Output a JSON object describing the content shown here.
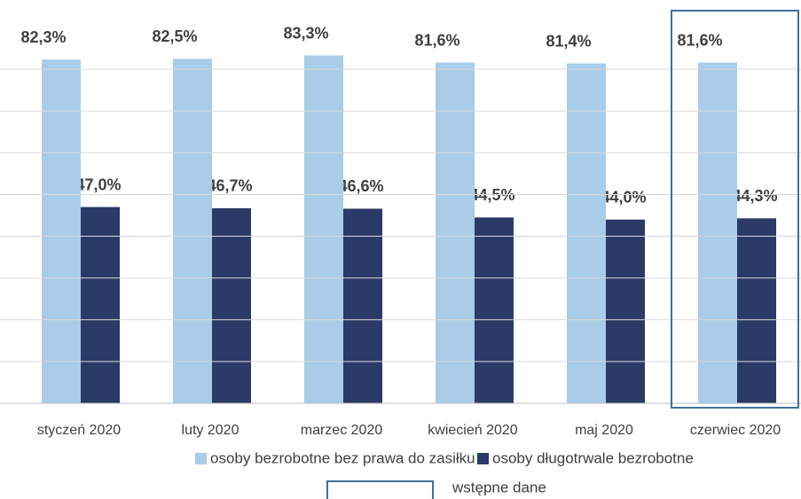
{
  "chart_data": {
    "type": "bar",
    "categories": [
      "styczeń 2020",
      "luty 2020",
      "marzec 2020",
      "kwiecień 2020",
      "maj 2020",
      "czerwiec 2020"
    ],
    "series": [
      {
        "name": "osoby bezrobotne bez prawa do zasiłku",
        "color": "#a9cce9",
        "values": [
          82.3,
          82.5,
          83.3,
          81.6,
          81.4,
          81.6
        ],
        "value_labels": [
          "82,3%",
          "82,5%",
          "83,3%",
          "81,6%",
          "81,4%",
          "81,6%"
        ]
      },
      {
        "name": "osoby długotrwale bezrobotne",
        "color": "#2b3a67",
        "values": [
          47.0,
          46.7,
          46.6,
          44.5,
          44.0,
          44.3
        ],
        "value_labels": [
          "47,0%",
          "46,7%",
          "46,6%",
          "44,5%",
          "44,0%",
          "44,3%"
        ]
      }
    ],
    "ylim": [
      0,
      90
    ],
    "yticks": [
      0,
      10,
      20,
      30,
      40,
      50,
      60,
      70,
      80
    ],
    "grid": true,
    "annotation": "wstępne dane"
  }
}
